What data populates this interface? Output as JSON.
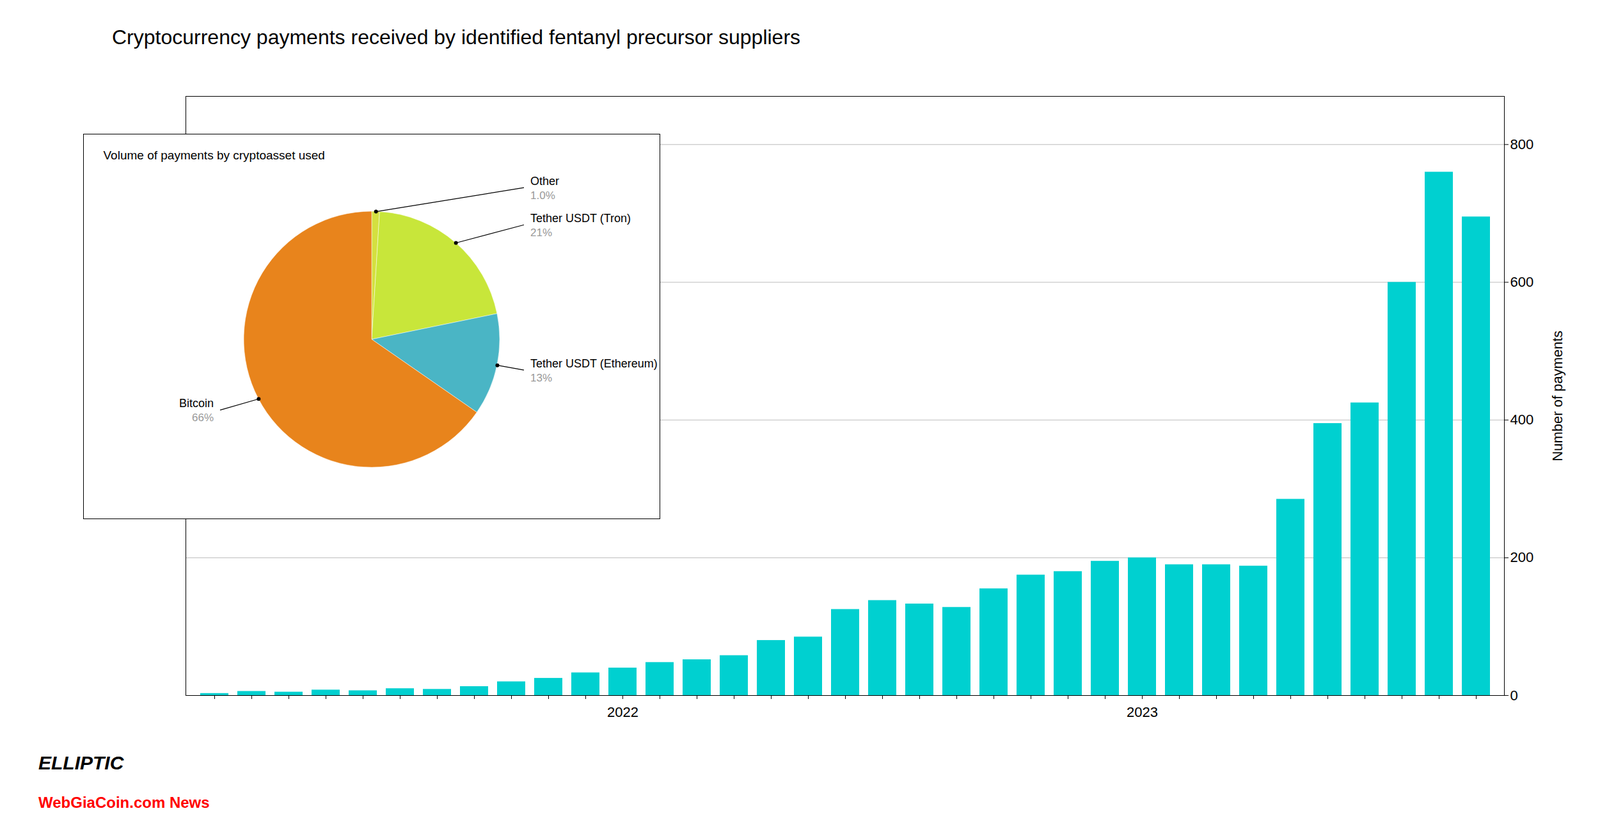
{
  "chart_data": [
    {
      "type": "bar",
      "title": "Cryptocurrency payments received by identified fentanyl precursor suppliers",
      "categories": [
        null,
        null,
        null,
        null,
        null,
        null,
        null,
        null,
        null,
        null,
        null,
        "2022",
        null,
        null,
        null,
        null,
        null,
        null,
        null,
        null,
        null,
        null,
        null,
        null,
        null,
        "2023",
        null,
        null,
        null,
        null,
        null,
        null,
        null,
        null,
        null
      ],
      "values": [
        3,
        6,
        5,
        8,
        7,
        10,
        9,
        13,
        20,
        25,
        33,
        40,
        48,
        52,
        58,
        80,
        85,
        125,
        138,
        133,
        128,
        155,
        175,
        180,
        195,
        200,
        190,
        190,
        188,
        285,
        395,
        425,
        600,
        760,
        695
      ],
      "color": "#00d0d0",
      "ylabel": "Number of payments",
      "ylim": [
        0,
        870
      ],
      "yticks": [
        0,
        200,
        400,
        600,
        800
      ],
      "grid": true,
      "annotations": [
        "ELLIPTIC",
        "WebGiaCoin.com News"
      ]
    },
    {
      "type": "pie",
      "title": "Volume of payments by cryptoasset used",
      "categories": [
        "Other",
        "Tether USDT (Tron)",
        "Tether USDT (Ethereum)",
        "Bitcoin"
      ],
      "values": [
        1,
        21,
        13,
        66
      ],
      "value_labels": [
        "1.0%",
        "21%",
        "13%",
        "66%"
      ],
      "colors": [
        "#d4e040",
        "#c8e63a",
        "#4ab5c5",
        "#e8841c"
      ],
      "data_labels": true
    }
  ]
}
